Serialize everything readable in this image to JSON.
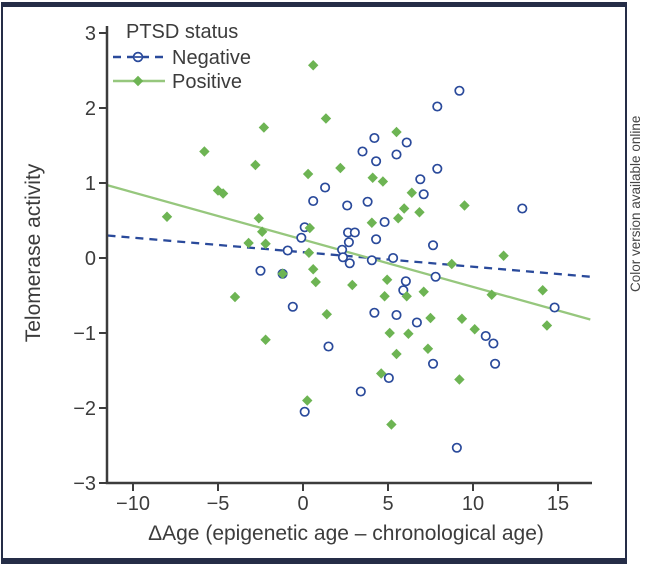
{
  "figure": {
    "sidebar_note": "Color version available online"
  },
  "chart_data": {
    "type": "scatter",
    "legend_title": "PTSD status",
    "xlabel": "ΔAge (epigenetic age – chronological age)",
    "ylabel": "Telomerase activity",
    "xlim": [
      -11.5,
      17
    ],
    "ylim": [
      -3,
      3
    ],
    "x_ticks": [
      -10,
      -5,
      0,
      5,
      10,
      15
    ],
    "y_ticks": [
      3,
      2,
      1,
      0,
      -1,
      -2,
      -3
    ],
    "grid": false,
    "legend_position": "top-left-inside",
    "colors": {
      "negative_blue": "#2a4a9b",
      "positive_green_marker": "#6db453",
      "positive_green_line": "#96c77d",
      "frame_navy": "#252d47",
      "axis_gray": "#3c3c3c"
    },
    "series": [
      {
        "name": "Negative",
        "marker": "open-circle",
        "color": "#2a4a9b",
        "line_style": "dashed",
        "trend": {
          "x1": -11.5,
          "y1": 0.3,
          "x2": 16.9,
          "y2": -0.25
        },
        "points": [
          [
            0.6,
            0.76
          ],
          [
            9.2,
            2.23
          ],
          [
            7.9,
            2.02
          ],
          [
            4.2,
            1.6
          ],
          [
            6.1,
            1.54
          ],
          [
            3.5,
            1.42
          ],
          [
            4.3,
            1.29
          ],
          [
            5.5,
            1.38
          ],
          [
            6.9,
            1.05
          ],
          [
            7.9,
            1.19
          ],
          [
            12.9,
            0.66
          ],
          [
            1.3,
            0.94
          ],
          [
            2.6,
            0.7
          ],
          [
            3.8,
            0.75
          ],
          [
            7.1,
            0.85
          ],
          [
            4.8,
            0.48
          ],
          [
            0.1,
            0.41
          ],
          [
            -0.1,
            0.27
          ],
          [
            -0.9,
            0.1
          ],
          [
            2.65,
            0.34
          ],
          [
            3.05,
            0.34
          ],
          [
            2.7,
            0.21
          ],
          [
            2.3,
            0.11
          ],
          [
            2.35,
            0.01
          ],
          [
            2.75,
            -0.07
          ],
          [
            4.05,
            -0.03
          ],
          [
            4.3,
            0.25
          ],
          [
            5.3,
            0.0
          ],
          [
            7.65,
            0.17
          ],
          [
            6.05,
            -0.31
          ],
          [
            5.9,
            -0.43
          ],
          [
            -2.5,
            -0.17
          ],
          [
            -0.6,
            -0.65
          ],
          [
            -1.2,
            -0.21
          ],
          [
            4.2,
            -0.73
          ],
          [
            5.5,
            -0.76
          ],
          [
            6.7,
            -0.86
          ],
          [
            7.8,
            -0.25
          ],
          [
            14.8,
            -0.66
          ],
          [
            10.75,
            -1.04
          ],
          [
            11.2,
            -1.14
          ],
          [
            11.3,
            -1.41
          ],
          [
            7.65,
            -1.41
          ],
          [
            1.5,
            -1.18
          ],
          [
            5.05,
            -1.6
          ],
          [
            3.4,
            -1.78
          ],
          [
            0.1,
            -2.05
          ],
          [
            9.05,
            -2.53
          ]
        ]
      },
      {
        "name": "Positive",
        "marker": "filled-diamond",
        "color": "#6db453",
        "line_color": "#96c77d",
        "line_style": "solid",
        "trend": {
          "x1": -11.5,
          "y1": 0.97,
          "x2": 16.9,
          "y2": -0.82
        },
        "points": [
          [
            -8.0,
            0.55
          ],
          [
            -5.8,
            1.42
          ],
          [
            -5.0,
            0.9
          ],
          [
            -4.7,
            0.86
          ],
          [
            -2.8,
            1.24
          ],
          [
            -2.3,
            1.74
          ],
          [
            -2.6,
            0.53
          ],
          [
            -2.4,
            0.35
          ],
          [
            -3.2,
            0.2
          ],
          [
            -2.2,
            0.19
          ],
          [
            -4.0,
            -0.52
          ],
          [
            -2.2,
            -1.09
          ],
          [
            -1.2,
            -0.21
          ],
          [
            0.6,
            2.57
          ],
          [
            1.35,
            1.86
          ],
          [
            0.3,
            1.12
          ],
          [
            2.2,
            1.2
          ],
          [
            4.1,
            1.07
          ],
          [
            4.7,
            1.02
          ],
          [
            5.5,
            1.68
          ],
          [
            0.4,
            0.4
          ],
          [
            0.35,
            0.07
          ],
          [
            0.6,
            -0.15
          ],
          [
            0.75,
            -0.32
          ],
          [
            6.4,
            0.87
          ],
          [
            5.95,
            0.66
          ],
          [
            6.85,
            0.61
          ],
          [
            5.6,
            0.53
          ],
          [
            4.05,
            0.47
          ],
          [
            2.9,
            -0.36
          ],
          [
            4.95,
            -0.29
          ],
          [
            4.8,
            -0.51
          ],
          [
            6.1,
            -0.51
          ],
          [
            7.1,
            -0.45
          ],
          [
            1.4,
            -0.75
          ],
          [
            7.5,
            -0.8
          ],
          [
            9.5,
            0.7
          ],
          [
            11.8,
            0.03
          ],
          [
            8.75,
            -0.08
          ],
          [
            11.1,
            -0.49
          ],
          [
            14.1,
            -0.43
          ],
          [
            9.35,
            -0.81
          ],
          [
            14.35,
            -0.9
          ],
          [
            10.1,
            -0.95
          ],
          [
            5.1,
            -1.0
          ],
          [
            6.2,
            -1.01
          ],
          [
            5.5,
            -1.28
          ],
          [
            7.35,
            -1.21
          ],
          [
            4.6,
            -1.54
          ],
          [
            0.25,
            -1.9
          ],
          [
            5.2,
            -2.22
          ],
          [
            9.2,
            -1.62
          ]
        ]
      }
    ]
  }
}
